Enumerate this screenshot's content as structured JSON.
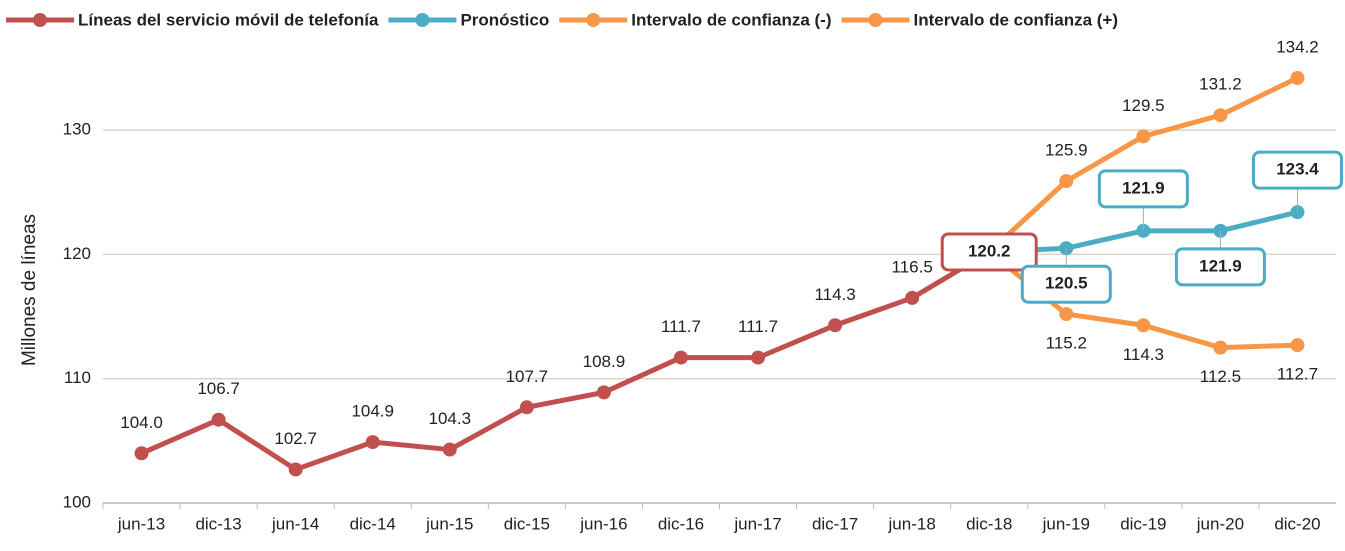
{
  "chart_data": {
    "type": "line",
    "categories": [
      "jun-13",
      "dic-13",
      "jun-14",
      "dic-14",
      "jun-15",
      "dic-15",
      "jun-16",
      "dic-16",
      "jun-17",
      "dic-17",
      "jun-18",
      "dic-18",
      "jun-19",
      "dic-19",
      "jun-20",
      "dic-20"
    ],
    "series": [
      {
        "name": "Líneas del servicio móvil de telefonía",
        "color": "#c0504d",
        "values": [
          104.0,
          106.7,
          102.7,
          104.9,
          104.3,
          107.7,
          108.9,
          111.7,
          111.7,
          114.3,
          116.5,
          120.2,
          null,
          null,
          null,
          null
        ],
        "value_labels": [
          "104.0",
          "106.7",
          "102.7",
          "104.9",
          "104.3",
          "107.7",
          "108.9",
          "111.7",
          "111.7",
          "114.3",
          "116.5",
          "120.2",
          null,
          null,
          null,
          null
        ]
      },
      {
        "name": "Pronóstico",
        "color": "#4bacc6",
        "values": [
          null,
          null,
          null,
          null,
          null,
          null,
          null,
          null,
          null,
          null,
          null,
          120.2,
          120.5,
          121.9,
          121.9,
          123.4
        ],
        "value_labels": [
          null,
          null,
          null,
          null,
          null,
          null,
          null,
          null,
          null,
          null,
          null,
          null,
          "120.5",
          "121.9",
          "121.9",
          "123.4"
        ]
      },
      {
        "name": "Intervalo de confianza (-)",
        "color": "#f79646",
        "values": [
          null,
          null,
          null,
          null,
          null,
          null,
          null,
          null,
          null,
          null,
          null,
          120.2,
          115.2,
          114.3,
          112.5,
          112.7
        ],
        "value_labels": [
          null,
          null,
          null,
          null,
          null,
          null,
          null,
          null,
          null,
          null,
          null,
          null,
          "115.2",
          "114.3",
          "112.5",
          "112.7"
        ]
      },
      {
        "name": "Intervalo de confianza (+)",
        "color": "#f79646",
        "values": [
          null,
          null,
          null,
          null,
          null,
          null,
          null,
          null,
          null,
          null,
          null,
          120.2,
          125.9,
          129.5,
          131.2,
          134.2
        ],
        "value_labels": [
          null,
          null,
          null,
          null,
          null,
          null,
          null,
          null,
          null,
          null,
          null,
          null,
          "125.9",
          "129.5",
          "131.2",
          "134.2"
        ]
      }
    ],
    "ylabel": "Millones de líneas",
    "ylim": [
      100,
      135
    ],
    "yticks": [
      100,
      110,
      120,
      130
    ],
    "grid": true,
    "legend": "top"
  }
}
